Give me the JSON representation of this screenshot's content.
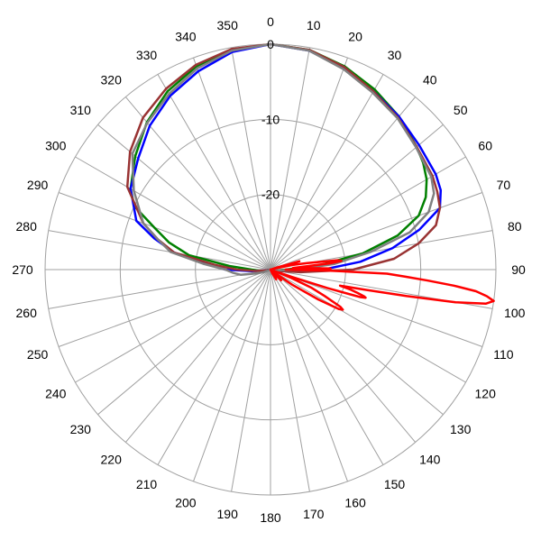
{
  "chart_data": {
    "type": "polar-line",
    "angle_unit": "degrees",
    "angle_zero": "top",
    "angle_direction": "clockwise",
    "angle_ticks": [
      0,
      10,
      20,
      30,
      40,
      50,
      60,
      70,
      80,
      90,
      100,
      110,
      120,
      130,
      140,
      150,
      160,
      170,
      180,
      190,
      200,
      210,
      220,
      230,
      240,
      250,
      260,
      270,
      280,
      290,
      300,
      310,
      320,
      330,
      340,
      350
    ],
    "radial_range": [
      -30,
      0
    ],
    "radial_ticks": [
      0,
      -10,
      -20
    ],
    "radial_tick_labels": [
      "0",
      "-10",
      "-20"
    ],
    "circle_levels": [
      0,
      -10,
      -20,
      -30
    ],
    "grid": true,
    "series": [
      {
        "color": "#008000",
        "points": [
          [
            0,
            0
          ],
          [
            10,
            -0.3
          ],
          [
            20,
            -1.2
          ],
          [
            30,
            -2.3
          ],
          [
            40,
            -3.4
          ],
          [
            50,
            -4.6
          ],
          [
            55,
            -5.2
          ],
          [
            60,
            -6.0
          ],
          [
            65,
            -7.2
          ],
          [
            70,
            -9.0
          ],
          [
            75,
            -12.5
          ],
          [
            80,
            -17.5
          ],
          [
            85,
            -23.5
          ],
          [
            90,
            -28.0
          ],
          [
            95,
            -29.0
          ],
          [
            100,
            -29.5
          ],
          [
            180,
            -30
          ],
          [
            260,
            -29.5
          ],
          [
            265,
            -28.5
          ],
          [
            270,
            -27.5
          ],
          [
            275,
            -24.5
          ],
          [
            280,
            -19.0
          ],
          [
            285,
            -16.0
          ],
          [
            290,
            -13.5
          ],
          [
            295,
            -10.0
          ],
          [
            300,
            -8.5
          ],
          [
            310,
            -6.5
          ],
          [
            320,
            -4.4
          ],
          [
            330,
            -2.6
          ],
          [
            340,
            -1.2
          ],
          [
            350,
            -0.3
          ],
          [
            360,
            0
          ]
        ]
      },
      {
        "color": "#0000ff",
        "points": [
          [
            0,
            0
          ],
          [
            10,
            -0.4
          ],
          [
            20,
            -1.5
          ],
          [
            30,
            -2.6
          ],
          [
            40,
            -3.4
          ],
          [
            50,
            -4.2
          ],
          [
            60,
            -4.6
          ],
          [
            65,
            -5.0
          ],
          [
            70,
            -6.0
          ],
          [
            75,
            -9.5
          ],
          [
            80,
            -13.5
          ],
          [
            85,
            -18.0
          ],
          [
            90,
            -23.0
          ],
          [
            95,
            -27.0
          ],
          [
            100,
            -29.0
          ],
          [
            180,
            -30
          ],
          [
            260,
            -29.5
          ],
          [
            265,
            -27.5
          ],
          [
            270,
            -24.0
          ],
          [
            275,
            -21.5
          ],
          [
            280,
            -17.0
          ],
          [
            285,
            -14.0
          ],
          [
            290,
            -11.0
          ],
          [
            300,
            -8.5
          ],
          [
            310,
            -7.0
          ],
          [
            320,
            -5.0
          ],
          [
            330,
            -3.3
          ],
          [
            340,
            -1.9
          ],
          [
            350,
            -0.6
          ],
          [
            360,
            0
          ]
        ]
      },
      {
        "color": "#993333",
        "points": [
          [
            0,
            0
          ],
          [
            10,
            -0.3
          ],
          [
            20,
            -1.3
          ],
          [
            30,
            -2.6
          ],
          [
            40,
            -3.6
          ],
          [
            50,
            -4.6
          ],
          [
            60,
            -5.1
          ],
          [
            65,
            -5.5
          ],
          [
            70,
            -6.0
          ],
          [
            75,
            -7.2
          ],
          [
            80,
            -10.0
          ],
          [
            85,
            -13.5
          ],
          [
            90,
            -19.0
          ],
          [
            95,
            -26.0
          ],
          [
            100,
            -29.0
          ],
          [
            180,
            -30
          ],
          [
            260,
            -29.5
          ],
          [
            265,
            -28.0
          ],
          [
            270,
            -25.5
          ],
          [
            275,
            -22.5
          ],
          [
            280,
            -17.0
          ],
          [
            285,
            -14.5
          ],
          [
            290,
            -12.0
          ],
          [
            300,
            -8.0
          ],
          [
            310,
            -5.6
          ],
          [
            320,
            -3.6
          ],
          [
            330,
            -2.2
          ],
          [
            340,
            -1.0
          ],
          [
            350,
            -0.2
          ],
          [
            360,
            0
          ]
        ]
      },
      {
        "color": "#808080",
        "points": [
          [
            0,
            0
          ],
          [
            10,
            -0.4
          ],
          [
            20,
            -1.6
          ],
          [
            30,
            -2.8
          ],
          [
            40,
            -3.7
          ],
          [
            50,
            -4.7
          ],
          [
            60,
            -5.3
          ],
          [
            65,
            -6.0
          ],
          [
            70,
            -7.6
          ],
          [
            75,
            -10.8
          ],
          [
            80,
            -16.5
          ],
          [
            85,
            -21.5
          ],
          [
            90,
            -26.5
          ],
          [
            95,
            -29.0
          ],
          [
            100,
            -29.5
          ],
          [
            180,
            -30
          ],
          [
            250,
            -29.0
          ],
          [
            255,
            -28.0
          ],
          [
            260,
            -26.0
          ],
          [
            265,
            -25.0
          ],
          [
            270,
            -24.0
          ],
          [
            275,
            -21.0
          ],
          [
            280,
            -16.5
          ],
          [
            285,
            -14.5
          ],
          [
            290,
            -12.0
          ],
          [
            300,
            -9.0
          ],
          [
            310,
            -6.0
          ],
          [
            320,
            -4.5
          ],
          [
            330,
            -3.0
          ],
          [
            340,
            -1.5
          ],
          [
            350,
            -0.4
          ],
          [
            360,
            0
          ]
        ]
      },
      {
        "color": "#ff0000",
        "points": [
          [
            0,
            -30
          ],
          [
            70,
            -30
          ],
          [
            72,
            -29.0
          ],
          [
            74,
            -26.0
          ],
          [
            76,
            -29.5
          ],
          [
            78,
            -27.0
          ],
          [
            80,
            -25.0
          ],
          [
            82,
            -21.0
          ],
          [
            83,
            -20.5
          ],
          [
            84,
            -22.0
          ],
          [
            86,
            -27.0
          ],
          [
            88,
            -24.5
          ],
          [
            89,
            -22.0
          ],
          [
            90,
            -28.0
          ],
          [
            91,
            -22.0
          ],
          [
            92,
            -14.5
          ],
          [
            93,
            -12.0
          ],
          [
            94,
            -9.0
          ],
          [
            95,
            -5.5
          ],
          [
            96,
            -2.5
          ],
          [
            97,
            -1.0
          ],
          [
            98,
            0
          ],
          [
            99,
            -1.0
          ],
          [
            100,
            -5.0
          ],
          [
            101,
            -11.5
          ],
          [
            102,
            -17.0
          ],
          [
            103,
            -20.5
          ],
          [
            104,
            -19.0
          ],
          [
            105,
            -18.0
          ],
          [
            106,
            -17.0
          ],
          [
            106.5,
            -16.8
          ],
          [
            107,
            -17.5
          ],
          [
            108,
            -22.0
          ],
          [
            109,
            -27.0
          ],
          [
            110,
            -29.5
          ],
          [
            112,
            -27.0
          ],
          [
            114,
            -24.0
          ],
          [
            116,
            -22.0
          ],
          [
            118,
            -19.5
          ],
          [
            119,
            -19.0
          ],
          [
            120,
            -19.5
          ],
          [
            122,
            -22.5
          ],
          [
            125,
            -26.5
          ],
          [
            128,
            -29.5
          ],
          [
            130,
            -30
          ],
          [
            135,
            -28.0
          ],
          [
            140,
            -29.5
          ],
          [
            150,
            -28.5
          ],
          [
            155,
            -29.5
          ],
          [
            160,
            -30
          ],
          [
            300,
            -30
          ],
          [
            360,
            -30
          ]
        ]
      }
    ]
  }
}
